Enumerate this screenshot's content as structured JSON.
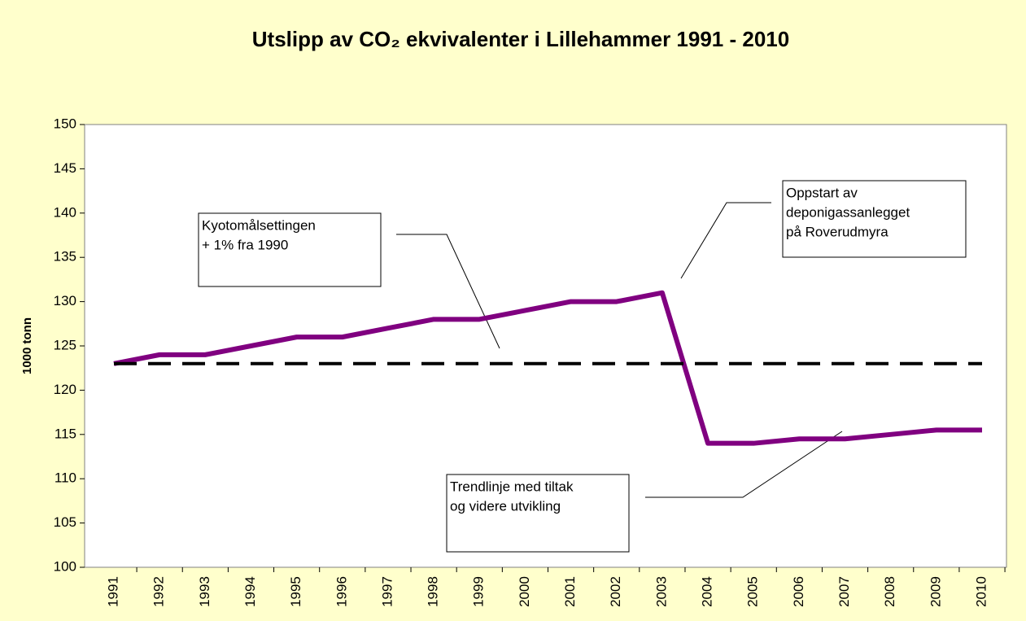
{
  "chart_data": {
    "type": "line",
    "title": "Utslipp av CO₂ ekvivalenter i Lillehammer 1991 - 2010",
    "y_label": "1000 tonn",
    "categories": [
      "1991",
      "1992",
      "1993",
      "1994",
      "1995",
      "1996",
      "1997",
      "1998",
      "1999",
      "2000",
      "2001",
      "2002",
      "2003",
      "2004",
      "2005",
      "2006",
      "2007",
      "2008",
      "2009",
      "2010"
    ],
    "series": [
      {
        "color": "#800080",
        "values": [
          123,
          124,
          124,
          125,
          126,
          126,
          127,
          128,
          128,
          129,
          130,
          130,
          131,
          114,
          114,
          114.5,
          114.5,
          115,
          115.5,
          115.5
        ]
      },
      {
        "color": "#000000",
        "dashed": true,
        "values": [
          123,
          123,
          123,
          123,
          123,
          123,
          123,
          123,
          123,
          123,
          123,
          123,
          123,
          123,
          123,
          123,
          123,
          123,
          123,
          123
        ]
      }
    ],
    "ylim": [
      100,
      150
    ],
    "yticks": [
      100,
      105,
      110,
      115,
      120,
      125,
      130,
      135,
      140,
      145,
      150
    ],
    "annotations": [
      {
        "lines": [
          "Kyotomålsettingen",
          "+ 1% fra 1990"
        ]
      },
      {
        "lines": [
          "Oppstart av",
          "deponigassanlegget",
          "på Roverudmyra"
        ]
      },
      {
        "lines": [
          "Trendlinje med tiltak",
          "og videre utvikling"
        ]
      }
    ]
  }
}
